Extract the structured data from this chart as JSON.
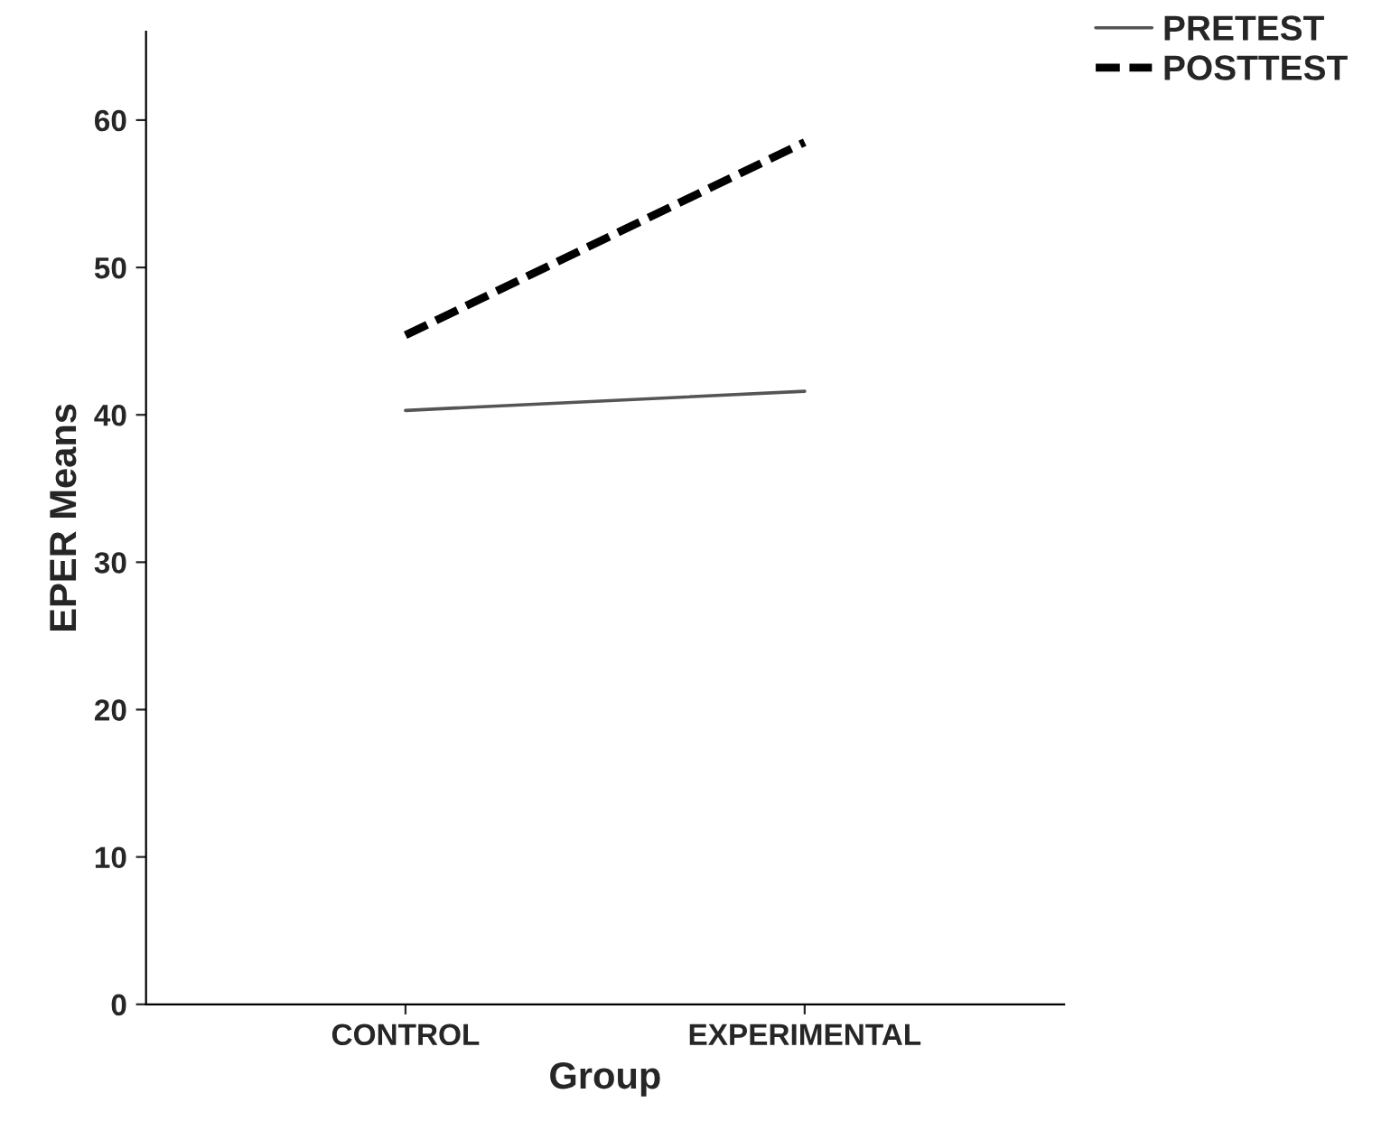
{
  "chart_data": {
    "type": "line",
    "xlabel": "Group",
    "ylabel": "EPER Means",
    "categories": [
      "CONTROL",
      "EXPERIMENTAL"
    ],
    "series": [
      {
        "name": "PRETEST",
        "color": "#555555",
        "values": [
          40.3,
          41.6
        ],
        "line_style": "solid"
      },
      {
        "name": "POSTTEST",
        "color": "#000000",
        "values": [
          45.4,
          58.5
        ],
        "line_style": "dashed"
      }
    ],
    "ylim": [
      0,
      66
    ],
    "yticks": [
      0,
      10,
      20,
      30,
      40,
      50,
      60
    ],
    "grid": false,
    "legend": "top right",
    "marker": "none"
  }
}
